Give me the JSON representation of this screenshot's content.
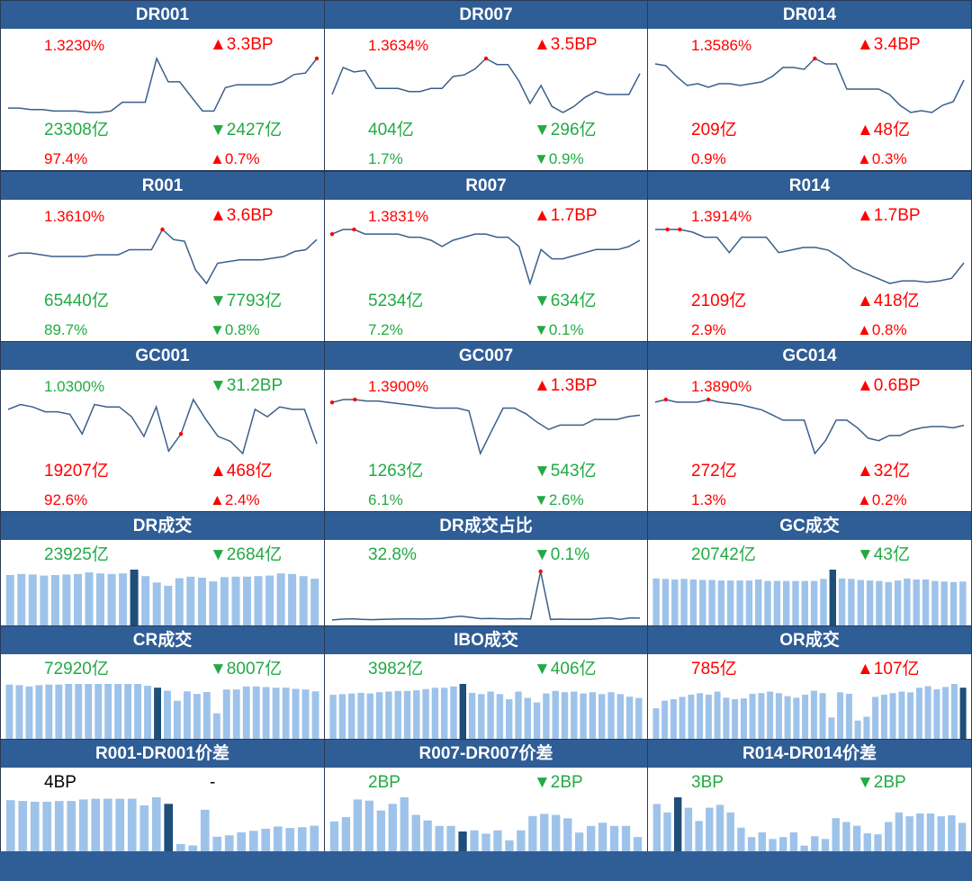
{
  "colors": {
    "header_bg": "#2f5d96",
    "up": "#ff0000",
    "down": "#22aa44",
    "line": "#3a5f8a",
    "bar": "#9ec3ea",
    "bar_highlight": "#1f4e79",
    "marker": "#ff0000"
  },
  "panels": [
    {
      "title": "DR001",
      "rate": "1.3230%",
      "rate_color": "red",
      "change": "▲3.3BP",
      "change_color": "red",
      "volume": "23308亿",
      "volume_color": "grn",
      "vol_change": "▼2427亿",
      "vol_change_color": "grn",
      "share": "97.4%",
      "share_color": "red",
      "share_change": "▲0.7%",
      "share_change_color": "red"
    },
    {
      "title": "DR007",
      "rate": "1.3634%",
      "rate_color": "red",
      "change": "▲3.5BP",
      "change_color": "red",
      "volume": "404亿",
      "volume_color": "grn",
      "vol_change": "▼296亿",
      "vol_change_color": "grn",
      "share": "1.7%",
      "share_color": "grn",
      "share_change": "▼0.9%",
      "share_change_color": "grn"
    },
    {
      "title": "DR014",
      "rate": "1.3586%",
      "rate_color": "red",
      "change": "▲3.4BP",
      "change_color": "red",
      "volume": "209亿",
      "volume_color": "red",
      "vol_change": "▲48亿",
      "vol_change_color": "red",
      "share": "0.9%",
      "share_color": "red",
      "share_change": "▲0.3%",
      "share_change_color": "red"
    },
    {
      "title": "R001",
      "rate": "1.3610%",
      "rate_color": "red",
      "change": "▲3.6BP",
      "change_color": "red",
      "volume": "65440亿",
      "volume_color": "grn",
      "vol_change": "▼7793亿",
      "vol_change_color": "grn",
      "share": "89.7%",
      "share_color": "grn",
      "share_change": "▼0.8%",
      "share_change_color": "grn"
    },
    {
      "title": "R007",
      "rate": "1.3831%",
      "rate_color": "red",
      "change": "▲1.7BP",
      "change_color": "red",
      "volume": "5234亿",
      "volume_color": "grn",
      "vol_change": "▼634亿",
      "vol_change_color": "grn",
      "share": "7.2%",
      "share_color": "grn",
      "share_change": "▼0.1%",
      "share_change_color": "grn"
    },
    {
      "title": "R014",
      "rate": "1.3914%",
      "rate_color": "red",
      "change": "▲1.7BP",
      "change_color": "red",
      "volume": "2109亿",
      "volume_color": "red",
      "vol_change": "▲418亿",
      "vol_change_color": "red",
      "share": "2.9%",
      "share_color": "red",
      "share_change": "▲0.8%",
      "share_change_color": "red"
    },
    {
      "title": "GC001",
      "rate": "1.0300%",
      "rate_color": "grn",
      "change": "▼31.2BP",
      "change_color": "grn",
      "volume": "19207亿",
      "volume_color": "red",
      "vol_change": "▲468亿",
      "vol_change_color": "red",
      "share": "92.6%",
      "share_color": "red",
      "share_change": "▲2.4%",
      "share_change_color": "red"
    },
    {
      "title": "GC007",
      "rate": "1.3900%",
      "rate_color": "red",
      "change": "▲1.3BP",
      "change_color": "red",
      "volume": "1263亿",
      "volume_color": "grn",
      "vol_change": "▼543亿",
      "vol_change_color": "grn",
      "share": "6.1%",
      "share_color": "grn",
      "share_change": "▼2.6%",
      "share_change_color": "grn"
    },
    {
      "title": "GC014",
      "rate": "1.3890%",
      "rate_color": "red",
      "change": "▲0.6BP",
      "change_color": "red",
      "volume": "272亿",
      "volume_color": "red",
      "vol_change": "▲32亿",
      "vol_change_color": "red",
      "share": "1.3%",
      "share_color": "red",
      "share_change": "▲0.2%",
      "share_change_color": "red"
    },
    {
      "title": "DR成交",
      "value": "23925亿",
      "value_color": "grn",
      "change": "▼2684亿",
      "change_color": "grn"
    },
    {
      "title": "DR成交占比",
      "value": "32.8%",
      "value_color": "grn",
      "change": "▼0.1%",
      "change_color": "grn"
    },
    {
      "title": "GC成交",
      "value": "20742亿",
      "value_color": "grn",
      "change": "▼43亿",
      "change_color": "grn"
    },
    {
      "title": "CR成交",
      "value": "72920亿",
      "value_color": "grn",
      "change": "▼8007亿",
      "change_color": "grn"
    },
    {
      "title": "IBO成交",
      "value": "3982亿",
      "value_color": "grn",
      "change": "▼406亿",
      "change_color": "grn"
    },
    {
      "title": "OR成交",
      "value": "785亿",
      "value_color": "red",
      "change": "▲107亿",
      "change_color": "red"
    },
    {
      "title": "R001-DR001价差",
      "value": "4BP",
      "value_color": "blk",
      "change": "-",
      "change_color": "blk"
    },
    {
      "title": "R007-DR007价差",
      "value": "2BP",
      "value_color": "grn",
      "change": "▼2BP",
      "change_color": "grn"
    },
    {
      "title": "R014-DR014价差",
      "value": "3BP",
      "value_color": "grn",
      "change": "▼2BP",
      "change_color": "grn"
    }
  ],
  "chart_data": [
    {
      "type": "line",
      "panel": 0,
      "values": [
        1.26,
        1.26,
        1.255,
        1.255,
        1.25,
        1.25,
        1.25,
        1.245,
        1.245,
        1.25,
        1.28,
        1.28,
        1.28,
        1.43,
        1.35,
        1.35,
        1.3,
        1.25,
        1.25,
        1.33,
        1.34,
        1.34,
        1.34,
        1.34,
        1.35,
        1.375,
        1.38,
        1.43
      ],
      "markers": [
        27
      ]
    },
    {
      "type": "line",
      "panel": 1,
      "values": [
        1.29,
        1.38,
        1.365,
        1.37,
        1.31,
        1.31,
        1.31,
        1.3,
        1.3,
        1.31,
        1.31,
        1.35,
        1.355,
        1.375,
        1.41,
        1.39,
        1.39,
        1.335,
        1.26,
        1.32,
        1.25,
        1.23,
        1.25,
        1.28,
        1.3,
        1.29,
        1.29,
        1.29,
        1.36
      ],
      "markers": [
        14
      ]
    },
    {
      "type": "line",
      "panel": 2,
      "values": [
        1.345,
        1.34,
        1.31,
        1.285,
        1.29,
        1.28,
        1.29,
        1.29,
        1.285,
        1.29,
        1.295,
        1.31,
        1.335,
        1.335,
        1.33,
        1.36,
        1.345,
        1.345,
        1.275,
        1.275,
        1.275,
        1.275,
        1.26,
        1.23,
        1.21,
        1.215,
        1.21,
        1.23,
        1.24,
        1.3
      ],
      "markers": [
        15
      ]
    },
    {
      "type": "line",
      "panel": 3,
      "values": [
        1.3,
        1.31,
        1.31,
        1.305,
        1.3,
        1.3,
        1.3,
        1.3,
        1.305,
        1.305,
        1.305,
        1.32,
        1.32,
        1.32,
        1.38,
        1.35,
        1.345,
        1.26,
        1.22,
        1.28,
        1.285,
        1.29,
        1.29,
        1.29,
        1.295,
        1.3,
        1.315,
        1.32,
        1.35
      ],
      "markers": [
        14
      ]
    },
    {
      "type": "line",
      "panel": 4,
      "values": [
        1.37,
        1.385,
        1.385,
        1.37,
        1.37,
        1.37,
        1.37,
        1.36,
        1.36,
        1.35,
        1.33,
        1.35,
        1.36,
        1.37,
        1.37,
        1.36,
        1.36,
        1.33,
        1.21,
        1.32,
        1.29,
        1.29,
        1.3,
        1.31,
        1.32,
        1.32,
        1.32,
        1.33,
        1.35
      ],
      "markers": [
        0,
        2
      ]
    },
    {
      "type": "line",
      "panel": 5,
      "values": [
        1.39,
        1.39,
        1.39,
        1.38,
        1.36,
        1.36,
        1.3,
        1.36,
        1.36,
        1.36,
        1.3,
        1.31,
        1.32,
        1.32,
        1.31,
        1.28,
        1.24,
        1.22,
        1.2,
        1.18,
        1.19,
        1.19,
        1.185,
        1.19,
        1.2,
        1.26
      ],
      "markers": [
        1,
        2
      ]
    },
    {
      "type": "line",
      "panel": 6,
      "values": [
        1.42,
        1.44,
        1.43,
        1.41,
        1.41,
        1.4,
        1.32,
        1.44,
        1.43,
        1.43,
        1.39,
        1.31,
        1.43,
        1.25,
        1.32,
        1.46,
        1.38,
        1.31,
        1.29,
        1.24,
        1.42,
        1.39,
        1.43,
        1.42,
        1.42,
        1.28
      ],
      "markers": [
        14
      ]
    },
    {
      "type": "line",
      "panel": 7,
      "values": [
        1.38,
        1.39,
        1.39,
        1.385,
        1.385,
        1.38,
        1.375,
        1.37,
        1.365,
        1.36,
        1.36,
        1.36,
        1.35,
        1.2,
        1.28,
        1.36,
        1.36,
        1.34,
        1.31,
        1.285,
        1.3,
        1.3,
        1.3,
        1.32,
        1.32,
        1.32,
        1.33,
        1.335
      ],
      "markers": [
        0,
        2
      ]
    },
    {
      "type": "line",
      "panel": 8,
      "values": [
        1.38,
        1.39,
        1.38,
        1.38,
        1.38,
        1.39,
        1.38,
        1.375,
        1.37,
        1.36,
        1.35,
        1.33,
        1.31,
        1.31,
        1.31,
        1.18,
        1.23,
        1.31,
        1.31,
        1.28,
        1.24,
        1.23,
        1.25,
        1.25,
        1.27,
        1.28,
        1.285,
        1.285,
        1.28,
        1.29
      ],
      "markers": [
        1,
        5
      ]
    },
    {
      "type": "bar",
      "panel": 9,
      "values": [
        94,
        96,
        95,
        93,
        94,
        95,
        96,
        99,
        97,
        96,
        97,
        104,
        92,
        80,
        74,
        88,
        91,
        89,
        82,
        90,
        91,
        91,
        92,
        93,
        97,
        96,
        92,
        87
      ],
      "highlight": 11
    },
    {
      "type": "line",
      "panel": 10,
      "values": [
        0.5,
        1.2,
        1.5,
        1.0,
        0.8,
        1.0,
        1.2,
        1.4,
        1.5,
        1.3,
        1.5,
        1.8,
        2.8,
        3.6,
        2.6,
        1.6,
        1.8,
        1.5,
        1.3,
        1.6,
        1.3,
        39,
        1.0,
        1.2,
        1.1,
        1.0,
        1.0,
        1.8,
        2.2,
        1.0,
        2.2,
        2.0
      ],
      "markers": [
        21
      ]
    },
    {
      "type": "bar",
      "panel": 11,
      "values": [
        91,
        90,
        89,
        90,
        89,
        88,
        88,
        87,
        87,
        87,
        87,
        89,
        86,
        86,
        86,
        86,
        86,
        86,
        90,
        108,
        91,
        90,
        88,
        87,
        86,
        84,
        87,
        91,
        89,
        89,
        86,
        85,
        84,
        85
      ],
      "highlight": 19
    },
    {
      "type": "bar",
      "panel": 12,
      "values": [
        87,
        86,
        84,
        86,
        87,
        87,
        88,
        88,
        88,
        88,
        88,
        88,
        88,
        88,
        85,
        82,
        77,
        61,
        76,
        72,
        75,
        41,
        79,
        79,
        84,
        84,
        83,
        82,
        82,
        80,
        79,
        76
      ],
      "highlight": 15
    },
    {
      "type": "bar",
      "panel": 13,
      "values": [
        69,
        70,
        71,
        72,
        71,
        73,
        74,
        75,
        75,
        76,
        78,
        80,
        80,
        82,
        86,
        72,
        70,
        74,
        70,
        62,
        74,
        64,
        57,
        71,
        75,
        73,
        74,
        71,
        73,
        70,
        73,
        70,
        66,
        64
      ],
      "highlight": 14
    },
    {
      "type": "bar",
      "panel": 14,
      "values": [
        40,
        50,
        52,
        55,
        58,
        60,
        58,
        62,
        54,
        52,
        53,
        59,
        60,
        62,
        60,
        56,
        54,
        58,
        63,
        60,
        28,
        61,
        59,
        24,
        29,
        55,
        58,
        60,
        62,
        61,
        67,
        69,
        65,
        68,
        72,
        67
      ],
      "highlight": 35
    },
    {
      "type": "bar",
      "panel": 15,
      "values": [
        7.0,
        6.9,
        6.8,
        6.8,
        6.9,
        6.9,
        7.1,
        7.2,
        7.2,
        7.2,
        7.2,
        6.3,
        7.4,
        6.5,
        1.0,
        0.8,
        5.7,
        2.0,
        2.2,
        2.6,
        2.8,
        3.1,
        3.4,
        3.2,
        3.3,
        3.5
      ],
      "highlight": 13
    },
    {
      "type": "bar",
      "panel": 16,
      "values": [
        2.7,
        3.1,
        4.7,
        4.6,
        3.7,
        4.3,
        4.9,
        3.3,
        2.8,
        2.3,
        2.3,
        1.8,
        1.9,
        1.6,
        1.9,
        1.0,
        1.9,
        3.2,
        3.4,
        3.3,
        3.0,
        1.7,
        2.3,
        2.6,
        2.3,
        2.3,
        1.3
      ],
      "highlight": 11
    },
    {
      "type": "bar",
      "panel": 17,
      "values": [
        5.0,
        4.1,
        5.7,
        4.6,
        3.2,
        4.6,
        4.9,
        4.1,
        2.5,
        1.5,
        2.0,
        1.3,
        1.5,
        2.0,
        0.6,
        1.6,
        1.3,
        3.5,
        3.1,
        2.7,
        1.9,
        1.8,
        3.1,
        4.1,
        3.7,
        4.0,
        4.0,
        3.7,
        3.8,
        3.0
      ],
      "highlight": 2
    }
  ]
}
